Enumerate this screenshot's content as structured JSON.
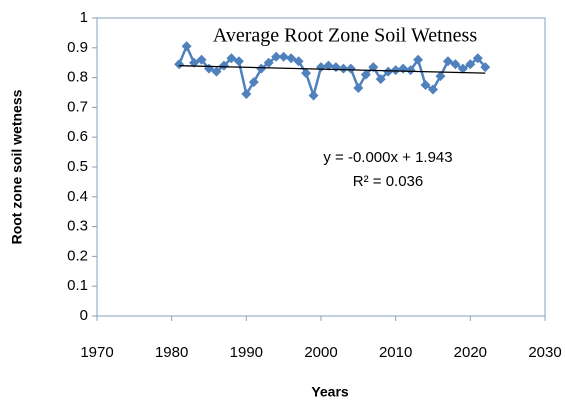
{
  "chart_data": {
    "type": "line",
    "title": "Average Root Zone Soil Wetness",
    "x_label": "Years",
    "y_label": "Root zone soil wetness",
    "x": [
      1981,
      1982,
      1983,
      1984,
      1985,
      1986,
      1987,
      1988,
      1989,
      1990,
      1991,
      1992,
      1993,
      1994,
      1995,
      1996,
      1997,
      1998,
      1999,
      2000,
      2001,
      2002,
      2003,
      2004,
      2005,
      2006,
      2007,
      2008,
      2009,
      2010,
      2011,
      2012,
      2013,
      2014,
      2015,
      2016,
      2017,
      2018,
      2019,
      2020,
      2021,
      2022
    ],
    "series": [
      {
        "color": "#4f81bd",
        "values": [
          0.845,
          0.905,
          0.85,
          0.86,
          0.83,
          0.82,
          0.84,
          0.865,
          0.855,
          0.745,
          0.785,
          0.83,
          0.85,
          0.87,
          0.87,
          0.865,
          0.855,
          0.815,
          0.74,
          0.835,
          0.84,
          0.835,
          0.83,
          0.83,
          0.765,
          0.81,
          0.835,
          0.795,
          0.82,
          0.825,
          0.83,
          0.825,
          0.86,
          0.775,
          0.76,
          0.805,
          0.855,
          0.845,
          0.83,
          0.845,
          0.865,
          0.835
        ]
      }
    ],
    "trendline": {
      "color": "#000000",
      "x": [
        1981,
        2022
      ],
      "values": [
        0.84,
        0.815
      ]
    },
    "annotations": [
      "y = -0.000x + 1.943",
      "R² = 0.036"
    ],
    "xlim": [
      1970,
      2030
    ],
    "xticks": [
      1970,
      1980,
      1990,
      2000,
      2010,
      2020,
      2030
    ],
    "ylim": [
      0,
      1
    ],
    "yticks": [
      0,
      0.1,
      0.2,
      0.3,
      0.4,
      0.5,
      0.6,
      0.7,
      0.8,
      0.9,
      1
    ],
    "grid": false
  }
}
